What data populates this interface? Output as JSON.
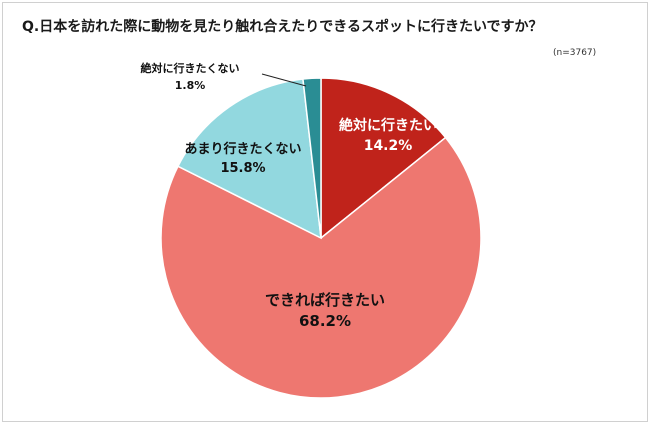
{
  "title": "Q.日本を訪れた際に動物を見たり触れ合えたりできるスポットに行きたいですか？",
  "note": "(n=3767)",
  "chart_data": {
    "type": "pie",
    "title": "Q.日本を訪れた際に動物を見たり触れ合えたりできるスポットに行きたいですか？",
    "note": "(n=3767)",
    "slices": [
      {
        "label": "絶対に行きたい",
        "value_label": "14.2%",
        "value": 14.2,
        "color": "#c0231b",
        "text_color": "#ffffff"
      },
      {
        "label": "できれば行きたい",
        "value_label": "68.2%",
        "value": 68.2,
        "color": "#ee7770",
        "text_color": "#111111"
      },
      {
        "label": "あまり行きたくない",
        "value_label": "15.8%",
        "value": 15.8,
        "color": "#92d8df",
        "text_color": "#111111"
      },
      {
        "label": "絶対に行きたくない",
        "value_label": "1.8%",
        "value": 1.8,
        "color": "#2a8d94",
        "text_color": "#111111"
      }
    ]
  }
}
